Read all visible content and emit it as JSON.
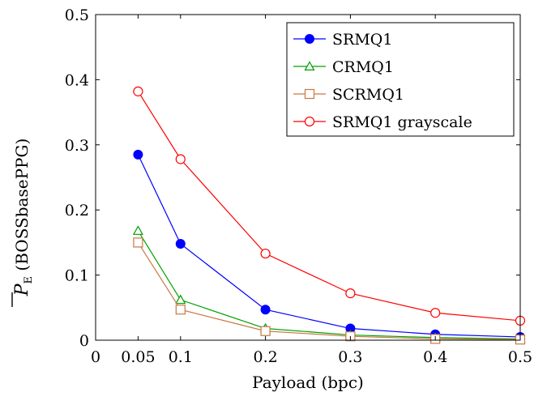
{
  "chart_data": {
    "type": "line",
    "xlabel": "Payload (bpc)",
    "ylabel_main": "P",
    "ylabel_sub": "E",
    "ylabel_paren": "(BOSSbasePPG)",
    "x": [
      0.05,
      0.1,
      0.2,
      0.3,
      0.4,
      0.5
    ],
    "xticks": [
      "0",
      "0.05",
      "0.1",
      "0.2",
      "0.3",
      "0.4",
      "0.5"
    ],
    "xtick_values": [
      0,
      0.05,
      0.1,
      0.2,
      0.3,
      0.4,
      0.5
    ],
    "yticks": [
      "0",
      "0.1",
      "0.2",
      "0.3",
      "0.4",
      "0.5"
    ],
    "ytick_values": [
      0,
      0.1,
      0.2,
      0.3,
      0.4,
      0.5
    ],
    "xlim": [
      0,
      0.5
    ],
    "ylim": [
      0,
      0.5
    ],
    "grid": false,
    "legend_position": "top-right",
    "series": [
      {
        "name": "SRMQ1",
        "color": "#0000ff",
        "marker": "filled-circle",
        "values": [
          0.285,
          0.148,
          0.047,
          0.018,
          0.009,
          0.005
        ]
      },
      {
        "name": "CRMQ1",
        "color": "#00a000",
        "marker": "triangle",
        "values": [
          0.168,
          0.062,
          0.018,
          0.008,
          0.004,
          0.002
        ]
      },
      {
        "name": "SCRMQ1",
        "color": "#c87941",
        "marker": "square",
        "values": [
          0.15,
          0.047,
          0.014,
          0.006,
          0.002,
          0.001
        ]
      },
      {
        "name": "SRMQ1 grayscale",
        "color": "#ff0000",
        "marker": "circle",
        "values": [
          0.382,
          0.278,
          0.133,
          0.072,
          0.042,
          0.03
        ]
      }
    ]
  }
}
